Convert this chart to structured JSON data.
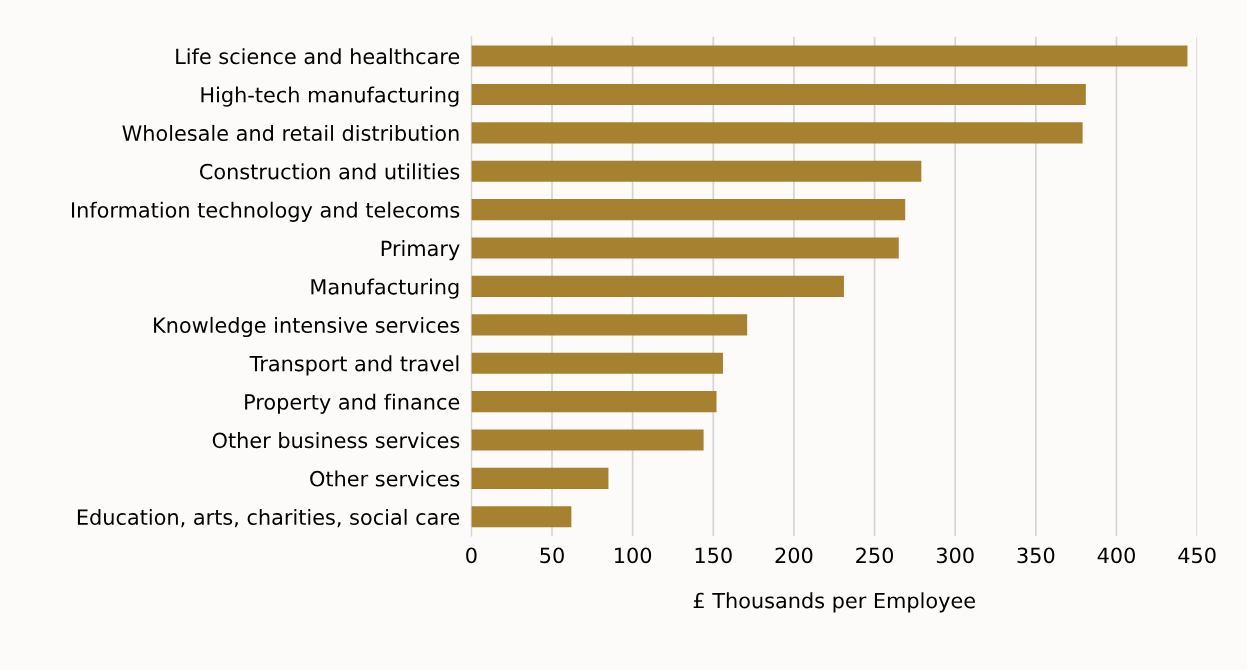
{
  "chart_data": {
    "type": "bar",
    "orientation": "horizontal",
    "xlabel": "£ Thousands per Employee",
    "categories": [
      "Life science and healthcare",
      "High-tech manufacturing",
      "Wholesale and retail distribution",
      "Construction and utilities",
      "Information technology and telecoms",
      "Primary",
      "Manufacturing",
      "Knowledge intensive services",
      "Transport and travel",
      "Property and finance",
      "Other business services",
      "Other services",
      "Education, arts, charities, social care"
    ],
    "values": [
      444,
      381,
      379,
      279,
      269,
      265,
      231,
      171,
      156,
      152,
      144,
      85,
      62
    ],
    "color": "#a58130",
    "xlim": [
      0,
      450
    ],
    "xticks": [
      0,
      50,
      100,
      150,
      200,
      250,
      300,
      350,
      400,
      450
    ],
    "grid": "x",
    "legend": false
  }
}
